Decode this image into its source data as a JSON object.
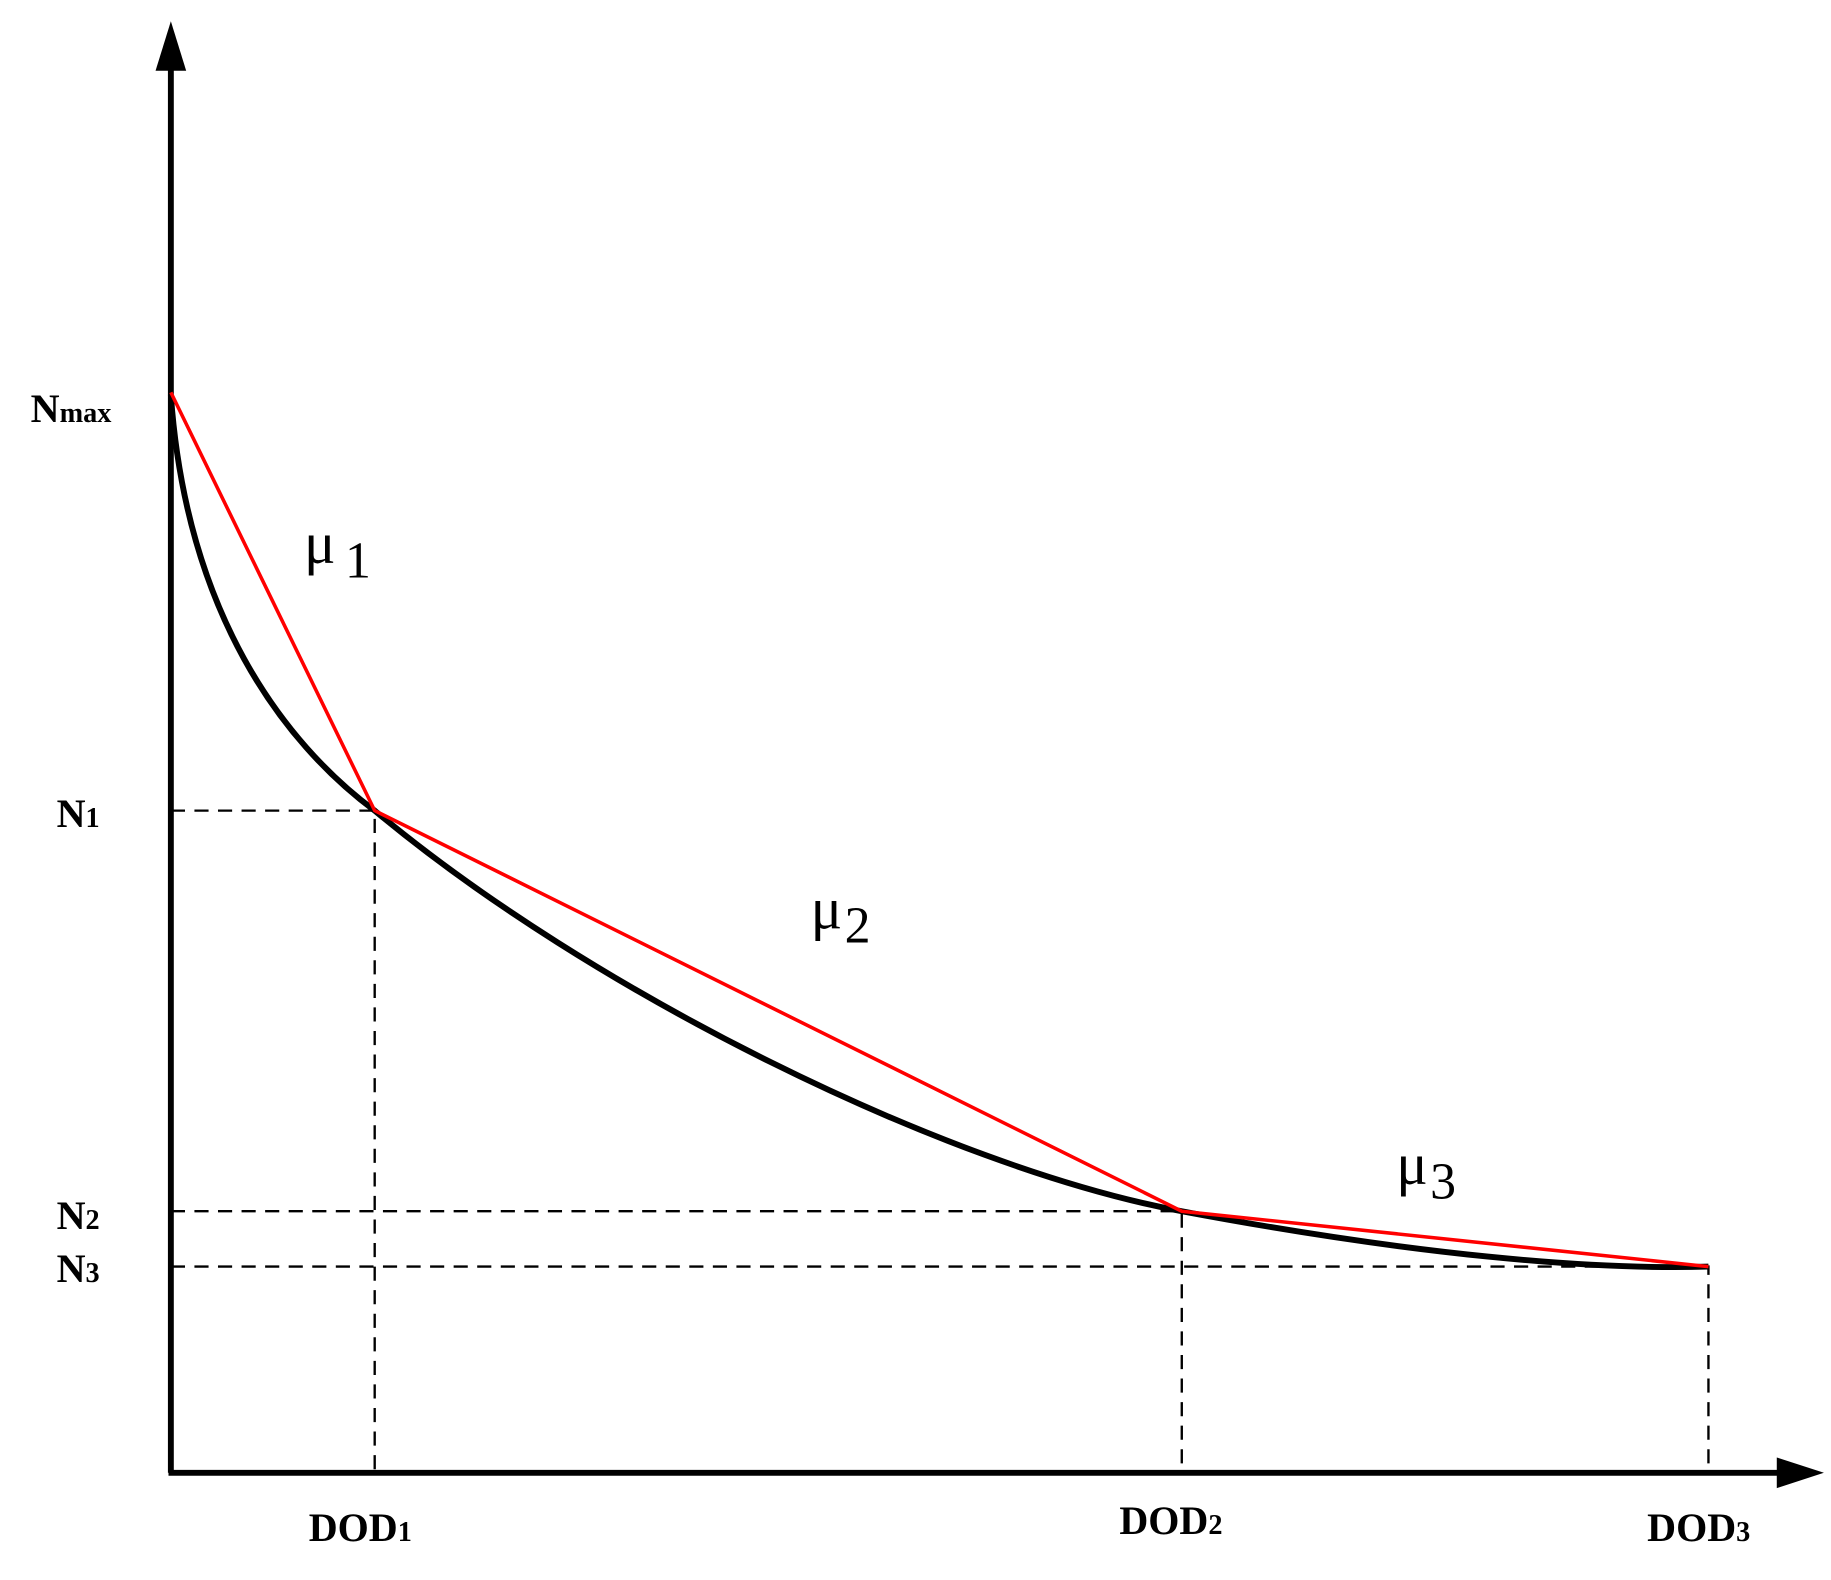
{
  "y_labels": [
    {
      "base": "N",
      "sub": "max"
    },
    {
      "base": "N",
      "sub": "1"
    },
    {
      "base": "N",
      "sub": "2"
    },
    {
      "base": "N",
      "sub": "3"
    }
  ],
  "x_labels": [
    {
      "base": "DOD",
      "sub": "1"
    },
    {
      "base": "DOD",
      "sub": "2"
    },
    {
      "base": "DOD",
      "sub": "3"
    }
  ],
  "segment_labels": [
    {
      "base": "μ",
      "sub": "1"
    },
    {
      "base": "μ",
      "sub": "2"
    },
    {
      "base": "μ",
      "sub": "3"
    }
  ]
}
